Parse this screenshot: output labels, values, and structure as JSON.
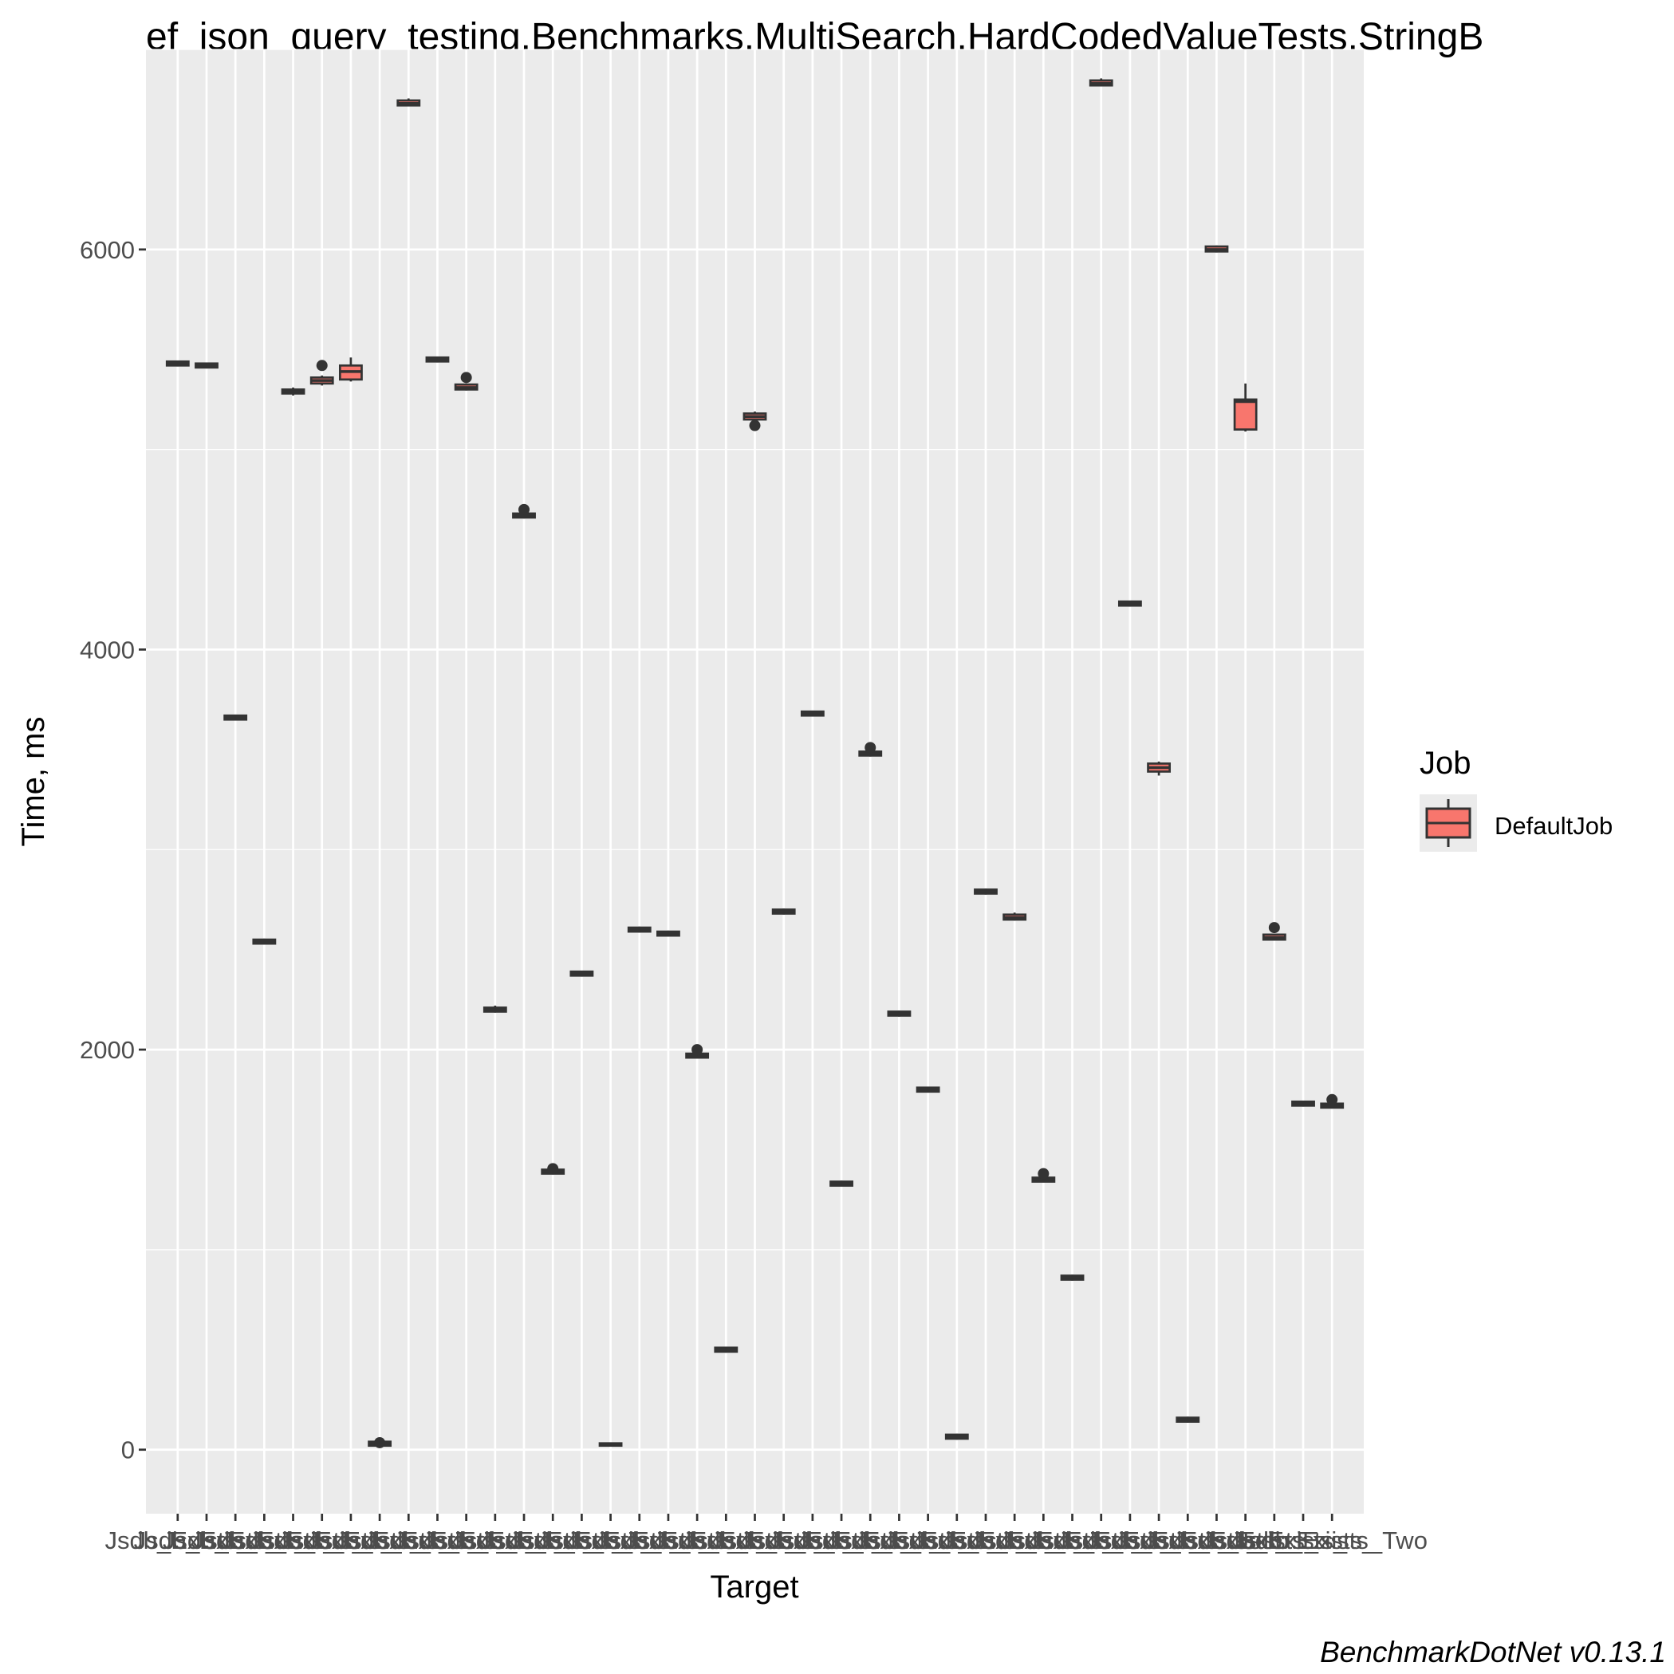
{
  "chart_data": {
    "type": "box",
    "title": "ef_json_query_testing.Benchmarks.MultiSearch.HardCodedValueTests.StringB",
    "xlabel": "Target",
    "ylabel": "Time, ms",
    "caption": "BenchmarkDotNet v0.13.1",
    "ylim": [
      -320,
      7000
    ],
    "y_ticks": [
      0,
      2000,
      4000,
      6000
    ],
    "y_tick_labels": [
      "0",
      "2000",
      "4000",
      "6000"
    ],
    "x_tick_labels": [
      "Jsdb_Exists_",
      "Jsdb_Exists_",
      "Jsdb_Exists_",
      "Jsdb_Exists_",
      "Jsdb_Exists_",
      "Jsdb_Exists_",
      "Jsdb_Exists_",
      "Jsdb_Exists_",
      "Jsdb_Exists_",
      "Jsdb_Exists_",
      "Jsdb_Exists_",
      "Jsdb_Exists_",
      "Jsdb_Exists_",
      "Jsdb_Exists_",
      "Jsdb_Exists_",
      "Jsdb_Exists_",
      "Jsdb_Exists_",
      "Jsdb_Exists_",
      "Jsdb_Exists_",
      "Jsdb_Exists_",
      "Jsdb_Exists_",
      "Jsdb_Exists_",
      "Jsdb_Exists_",
      "Jsdb_Exists_",
      "Jsdb_Exists_",
      "Jsdb_Exists_",
      "Jsdb_Exists_",
      "Jsdb_Exists_",
      "Jsdb_Exists_",
      "Jsdb_Exists_",
      "Jsdb_Exists_",
      "Jsdb_Exists_",
      "Jsdb_Exists_",
      "Jsdb_Exists_",
      "Jsdb_Exists_",
      "Jsdb_Exists_",
      "Jsdb_Exists_",
      "Jsdb_Exists_",
      "Jsdb_Exists_",
      "Jsdb_Exists_",
      "Jsdb_Exists_Two"
    ],
    "legend": {
      "title": "Job",
      "entries": [
        "DefaultJob"
      ],
      "position": "right"
    },
    "grid": true,
    "series": [
      {
        "name": "DefaultJob",
        "color": "#f8766d",
        "boxes": [
          {
            "q1": 5420,
            "median": 5430,
            "q3": 5440,
            "whisker_low": 5415,
            "whisker_high": 5445,
            "outliers": []
          },
          {
            "q1": 5410,
            "median": 5420,
            "q3": 5430,
            "whisker_low": 5405,
            "whisker_high": 5435,
            "outliers": []
          },
          {
            "q1": 3650,
            "median": 3660,
            "q3": 3670,
            "whisker_low": 3645,
            "whisker_high": 3675,
            "outliers": []
          },
          {
            "q1": 2530,
            "median": 2540,
            "q3": 2550,
            "whisker_low": 2525,
            "whisker_high": 2555,
            "outliers": []
          },
          {
            "q1": 5280,
            "median": 5290,
            "q3": 5300,
            "whisker_low": 5270,
            "whisker_high": 5310,
            "outliers": []
          },
          {
            "q1": 5330,
            "median": 5345,
            "q3": 5360,
            "whisker_low": 5320,
            "whisker_high": 5370,
            "outliers": [
              5420
            ]
          },
          {
            "q1": 5350,
            "median": 5390,
            "q3": 5420,
            "whisker_low": 5340,
            "whisker_high": 5460,
            "outliers": []
          },
          {
            "q1": 20,
            "median": 30,
            "q3": 40,
            "whisker_low": 15,
            "whisker_high": 45,
            "outliers": [
              35
            ]
          },
          {
            "q1": 6720,
            "median": 6730,
            "q3": 6745,
            "whisker_low": 6715,
            "whisker_high": 6755,
            "outliers": []
          },
          {
            "q1": 5440,
            "median": 5450,
            "q3": 5460,
            "whisker_low": 5435,
            "whisker_high": 5465,
            "outliers": []
          },
          {
            "q1": 5300,
            "median": 5310,
            "q3": 5325,
            "whisker_low": 5295,
            "whisker_high": 5330,
            "outliers": [
              5360
            ]
          },
          {
            "q1": 2190,
            "median": 2200,
            "q3": 2210,
            "whisker_low": 2185,
            "whisker_high": 2220,
            "outliers": []
          },
          {
            "q1": 4660,
            "median": 4670,
            "q3": 4680,
            "whisker_low": 4655,
            "whisker_high": 4685,
            "outliers": [
              4700
            ]
          },
          {
            "q1": 1380,
            "median": 1390,
            "q3": 1400,
            "whisker_low": 1375,
            "whisker_high": 1405,
            "outliers": [
              1405
            ]
          },
          {
            "q1": 2370,
            "median": 2380,
            "q3": 2390,
            "whisker_low": 2365,
            "whisker_high": 2395,
            "outliers": []
          },
          {
            "q1": 20,
            "median": 27,
            "q3": 32,
            "whisker_low": 17,
            "whisker_high": 35,
            "outliers": []
          },
          {
            "q1": 2590,
            "median": 2600,
            "q3": 2610,
            "whisker_low": 2585,
            "whisker_high": 2615,
            "outliers": []
          },
          {
            "q1": 2570,
            "median": 2580,
            "q3": 2590,
            "whisker_low": 2565,
            "whisker_high": 2595,
            "outliers": []
          },
          {
            "q1": 1960,
            "median": 1970,
            "q3": 1980,
            "whisker_low": 1955,
            "whisker_high": 1985,
            "outliers": [
              2000
            ]
          },
          {
            "q1": 490,
            "median": 500,
            "q3": 510,
            "whisker_low": 485,
            "whisker_high": 515,
            "outliers": []
          },
          {
            "q1": 5150,
            "median": 5165,
            "q3": 5180,
            "whisker_low": 5145,
            "whisker_high": 5190,
            "outliers": [
              5120
            ]
          },
          {
            "q1": 2680,
            "median": 2690,
            "q3": 2700,
            "whisker_low": 2675,
            "whisker_high": 2705,
            "outliers": []
          },
          {
            "q1": 3670,
            "median": 3680,
            "q3": 3690,
            "whisker_low": 3665,
            "whisker_high": 3695,
            "outliers": []
          },
          {
            "q1": 1320,
            "median": 1330,
            "q3": 1340,
            "whisker_low": 1315,
            "whisker_high": 1345,
            "outliers": []
          },
          {
            "q1": 3470,
            "median": 3480,
            "q3": 3490,
            "whisker_low": 3465,
            "whisker_high": 3495,
            "outliers": [
              3510
            ]
          },
          {
            "q1": 2170,
            "median": 2180,
            "q3": 2190,
            "whisker_low": 2165,
            "whisker_high": 2195,
            "outliers": []
          },
          {
            "q1": 1790,
            "median": 1800,
            "q3": 1810,
            "whisker_low": 1785,
            "whisker_high": 1815,
            "outliers": []
          },
          {
            "q1": 55,
            "median": 65,
            "q3": 75,
            "whisker_low": 50,
            "whisker_high": 80,
            "outliers": []
          },
          {
            "q1": 2780,
            "median": 2790,
            "q3": 2800,
            "whisker_low": 2775,
            "whisker_high": 2805,
            "outliers": []
          },
          {
            "q1": 2650,
            "median": 2660,
            "q3": 2675,
            "whisker_low": 2645,
            "whisker_high": 2685,
            "outliers": []
          },
          {
            "q1": 1340,
            "median": 1350,
            "q3": 1360,
            "whisker_low": 1335,
            "whisker_high": 1365,
            "outliers": [
              1380
            ]
          },
          {
            "q1": 850,
            "median": 860,
            "q3": 870,
            "whisker_low": 845,
            "whisker_high": 875,
            "outliers": []
          },
          {
            "q1": 6820,
            "median": 6830,
            "q3": 6845,
            "whisker_low": 6815,
            "whisker_high": 6855,
            "outliers": []
          },
          {
            "q1": 4220,
            "median": 4230,
            "q3": 4240,
            "whisker_low": 4215,
            "whisker_high": 4245,
            "outliers": []
          },
          {
            "q1": 3390,
            "median": 3410,
            "q3": 3430,
            "whisker_low": 3370,
            "whisker_high": 3440,
            "outliers": []
          },
          {
            "q1": 140,
            "median": 150,
            "q3": 160,
            "whisker_low": 135,
            "whisker_high": 165,
            "outliers": []
          },
          {
            "q1": 5990,
            "median": 6000,
            "q3": 6015,
            "whisker_low": 5985,
            "whisker_high": 6020,
            "outliers": []
          },
          {
            "q1": 5100,
            "median": 5240,
            "q3": 5250,
            "whisker_low": 5090,
            "whisker_high": 5330,
            "outliers": []
          },
          {
            "q1": 2550,
            "median": 2560,
            "q3": 2575,
            "whisker_low": 2545,
            "whisker_high": 2580,
            "outliers": [
              2610
            ]
          },
          {
            "q1": 1720,
            "median": 1730,
            "q3": 1740,
            "whisker_low": 1715,
            "whisker_high": 1745,
            "outliers": []
          },
          {
            "q1": 1710,
            "median": 1720,
            "q3": 1730,
            "whisker_low": 1705,
            "whisker_high": 1735,
            "outliers": [
              1750
            ]
          }
        ]
      }
    ]
  }
}
